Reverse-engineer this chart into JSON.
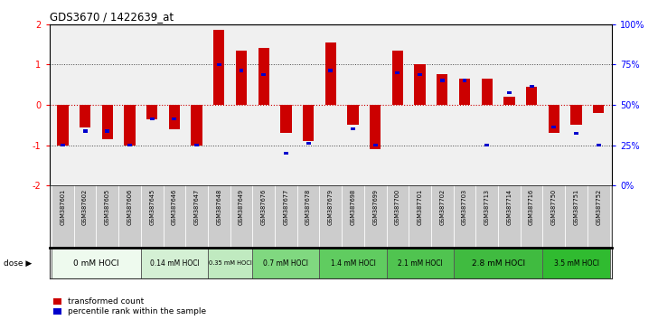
{
  "title": "GDS3670 / 1422639_at",
  "samples": [
    "GSM387601",
    "GSM387602",
    "GSM387605",
    "GSM387606",
    "GSM387645",
    "GSM387646",
    "GSM387647",
    "GSM387648",
    "GSM387649",
    "GSM387676",
    "GSM387677",
    "GSM387678",
    "GSM387679",
    "GSM387698",
    "GSM387699",
    "GSM387700",
    "GSM387701",
    "GSM387702",
    "GSM387703",
    "GSM387713",
    "GSM387714",
    "GSM387716",
    "GSM387750",
    "GSM387751",
    "GSM387752"
  ],
  "red_values": [
    -1.0,
    -0.55,
    -0.85,
    -1.0,
    -0.35,
    -0.6,
    -1.0,
    1.85,
    1.35,
    1.4,
    -0.7,
    -0.9,
    1.55,
    -0.5,
    -1.1,
    1.35,
    1.0,
    0.75,
    0.65,
    0.65,
    0.2,
    0.45,
    -0.7,
    -0.5,
    -0.2
  ],
  "blue_values": [
    -1.0,
    -0.65,
    -0.65,
    -1.0,
    -0.35,
    -0.35,
    -1.0,
    1.0,
    0.85,
    0.75,
    -1.2,
    -0.95,
    0.85,
    -0.6,
    -1.0,
    0.8,
    0.75,
    0.6,
    0.6,
    -1.0,
    0.3,
    0.45,
    -0.55,
    -0.7,
    -1.0
  ],
  "dose_groups": [
    {
      "label": "0 mM HOCl",
      "start": 0,
      "end": 4,
      "color": "#eefaee"
    },
    {
      "label": "0.14 mM HOCl",
      "start": 4,
      "end": 7,
      "color": "#d4f0d4"
    },
    {
      "label": "0.35 mM HOCl",
      "start": 7,
      "end": 9,
      "color": "#c0eac0"
    },
    {
      "label": "0.7 mM HOCl",
      "start": 9,
      "end": 12,
      "color": "#80d880"
    },
    {
      "label": "1.4 mM HOCl",
      "start": 12,
      "end": 15,
      "color": "#60cc60"
    },
    {
      "label": "2.1 mM HOCl",
      "start": 15,
      "end": 18,
      "color": "#50c450"
    },
    {
      "label": "2.8 mM HOCl",
      "start": 18,
      "end": 22,
      "color": "#40bb40"
    },
    {
      "label": "3.5 mM HOCl",
      "start": 22,
      "end": 25,
      "color": "#30bb30"
    }
  ],
  "bar_color": "#cc0000",
  "blue_color": "#0000cc",
  "ylim": [
    -2,
    2
  ],
  "y2_ticks": [
    0,
    25,
    50,
    75,
    100
  ],
  "y2_labels": [
    "0%",
    "25%",
    "50%",
    "75%",
    "100%"
  ],
  "yticks": [
    -2,
    -1,
    0,
    1,
    2
  ],
  "ytick_labels": [
    "-2",
    "-1",
    "0",
    "1",
    "2"
  ],
  "hline0_color": "#cc0000",
  "hline1_color": "#444444",
  "panel_bg": "#cccccc",
  "plot_bg": "#f0f0f0"
}
